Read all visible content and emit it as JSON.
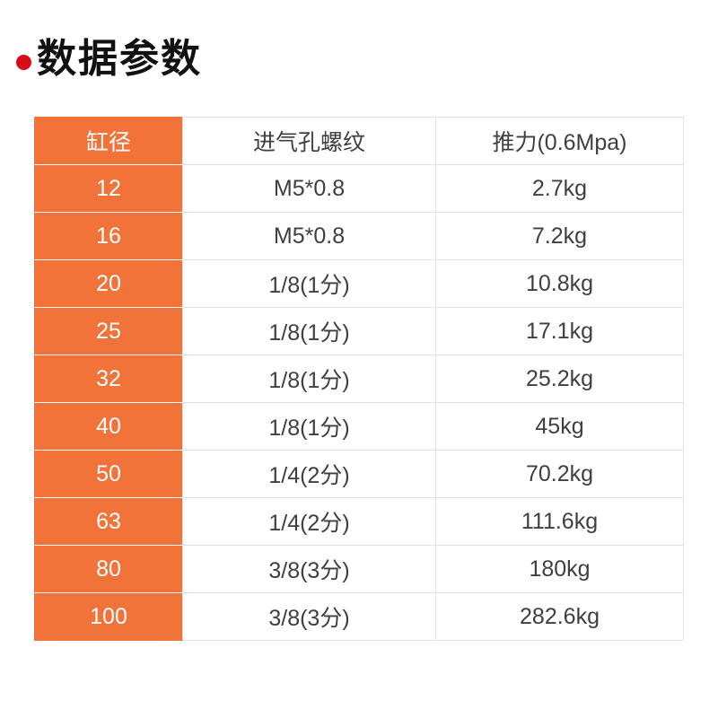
{
  "page": {
    "title": "数据参数"
  },
  "colors": {
    "accent_red": "#d80c18",
    "column_orange": "#f2733a",
    "grid_line": "#e3e3e3",
    "body_text": "#3f3f3f"
  },
  "table": {
    "headers": [
      "缸径",
      "进气孔螺纹",
      "推力(0.6Mpa)"
    ],
    "rows": [
      [
        "12",
        "M5*0.8",
        "2.7kg"
      ],
      [
        "16",
        "M5*0.8",
        "7.2kg"
      ],
      [
        "20",
        "1/8(1分)",
        "10.8kg"
      ],
      [
        "25",
        "1/8(1分)",
        "17.1kg"
      ],
      [
        "32",
        "1/8(1分)",
        "25.2kg"
      ],
      [
        "40",
        "1/8(1分)",
        "45kg"
      ],
      [
        "50",
        "1/4(2分)",
        "70.2kg"
      ],
      [
        "63",
        "1/4(2分)",
        "111.6kg"
      ],
      [
        "80",
        "3/8(3分)",
        "180kg"
      ],
      [
        "100",
        "3/8(3分)",
        "282.6kg"
      ]
    ]
  }
}
